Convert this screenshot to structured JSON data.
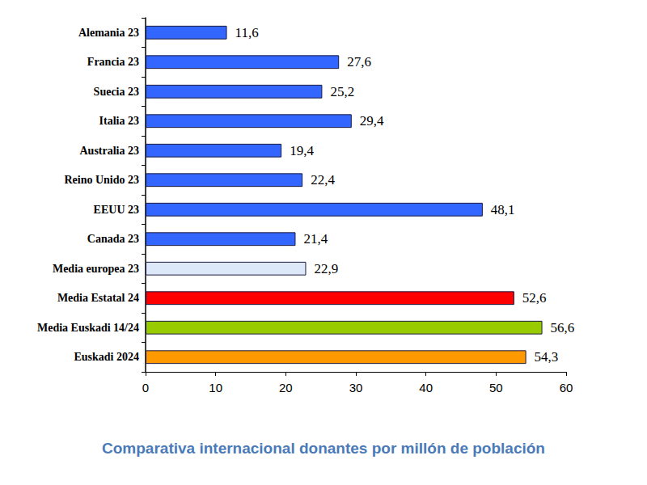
{
  "chart_data": {
    "type": "bar",
    "title": "Comparativa internacional donantes por millón de población",
    "orientation": "horizontal",
    "categories": [
      "Alemania 23",
      "Francia 23",
      "Suecia 23",
      "Italia 23",
      "Australia 23",
      "Reino Unido 23",
      "EEUU 23",
      "Canada 23",
      "Media europea 23",
      "Media Estatal 24",
      "Media Euskadi 14/24",
      "Euskadi 2024"
    ],
    "values": [
      11.6,
      27.6,
      25.2,
      29.4,
      19.4,
      22.4,
      48.1,
      21.4,
      22.9,
      52.6,
      56.6,
      54.3
    ],
    "value_labels": [
      "11,6",
      "27,6",
      "25,2",
      "29,4",
      "19,4",
      "22,4",
      "48,1",
      "21,4",
      "22,9",
      "52,6",
      "56,6",
      "54,3"
    ],
    "colors": [
      "#3366ff",
      "#3366ff",
      "#3366ff",
      "#3366ff",
      "#3366ff",
      "#3366ff",
      "#3366ff",
      "#3366ff",
      "#dde8f8",
      "#ff0000",
      "#99cc00",
      "#ff9900"
    ],
    "xlim": [
      0,
      60
    ],
    "xticks": [
      0,
      10,
      20,
      30,
      40,
      50,
      60
    ],
    "data_labels": true,
    "grid": false
  }
}
